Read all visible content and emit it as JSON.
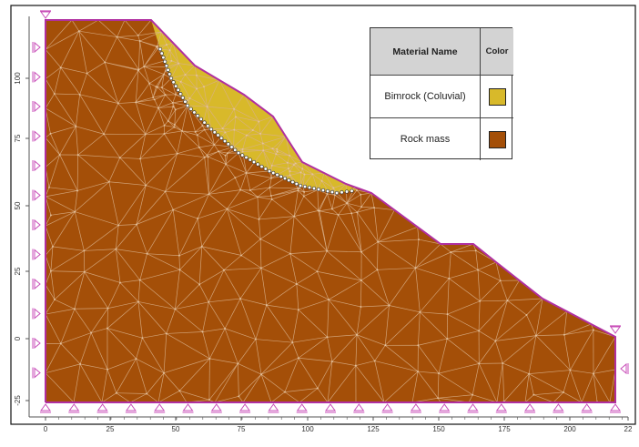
{
  "legend": {
    "header_name": "Material Name",
    "header_color": "Color",
    "materials": [
      {
        "name": "Bimrock (Coluvial)",
        "color": "#d8b92a"
      },
      {
        "name": "Rock mass",
        "color": "#a44f08"
      }
    ]
  },
  "colors": {
    "frame": "#111111",
    "boundary": "#b02fa0",
    "mesh_line": "#d9b08a",
    "interface_node": "#ffffff",
    "support_symbol": "#c84eb8",
    "axis": "#555555"
  },
  "axes": {
    "x_ticks": [
      "0",
      "25",
      "50",
      "75",
      "100",
      "125",
      "150",
      "175",
      "200",
      "22"
    ],
    "y_ticks": [
      "100",
      "75",
      "50",
      "25",
      "0",
      "-25"
    ]
  },
  "model": {
    "support_types": [
      "fixed-xy (bottom boundary)",
      "roller-x (left boundary)",
      "roller-x (right boundary)"
    ]
  }
}
